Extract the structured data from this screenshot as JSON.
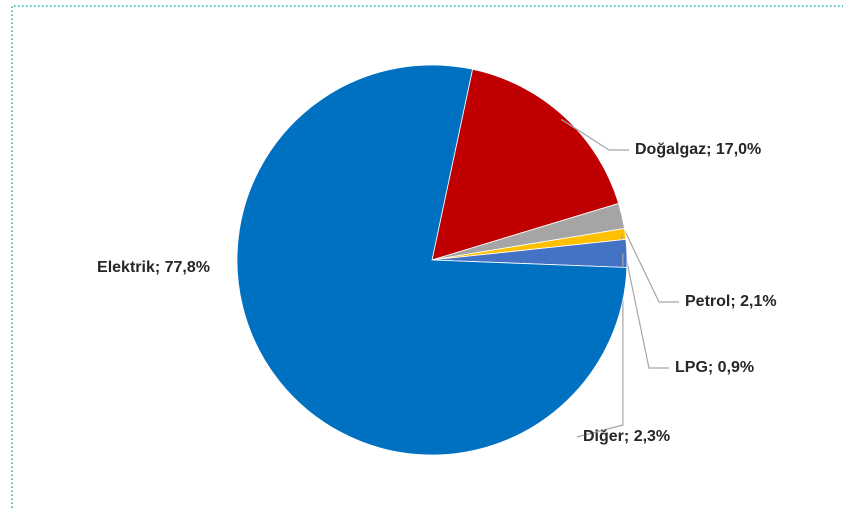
{
  "chart_data": {
    "type": "pie",
    "categories": [
      "Doğalgaz",
      "Petrol",
      "LPG",
      "Diğer",
      "Elektrik"
    ],
    "values": [
      17.0,
      2.1,
      0.9,
      2.3,
      77.8
    ],
    "value_labels": [
      "17,0%",
      "2,1%",
      "0,9%",
      "2,3%",
      "77,8%"
    ],
    "label_separator": "; ",
    "colors": [
      "#c00000",
      "#a5a5a5",
      "#ffc000",
      "#4472c4",
      "#0070c0"
    ]
  }
}
